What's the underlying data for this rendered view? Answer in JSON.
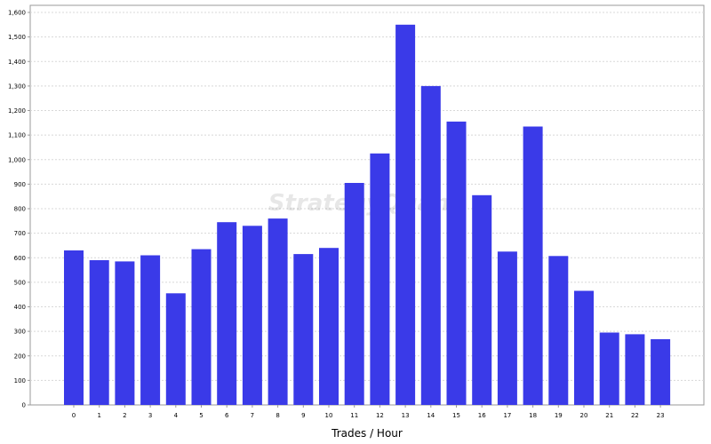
{
  "chart_data": {
    "type": "bar",
    "title": "",
    "xlabel": "Trades / Hour",
    "ylabel": "",
    "watermark": "StrategyQuant",
    "categories": [
      "0",
      "1",
      "2",
      "3",
      "4",
      "5",
      "6",
      "7",
      "8",
      "9",
      "10",
      "11",
      "12",
      "13",
      "14",
      "15",
      "16",
      "17",
      "18",
      "19",
      "20",
      "21",
      "22",
      "23"
    ],
    "values": [
      630,
      590,
      585,
      610,
      455,
      635,
      745,
      730,
      760,
      615,
      640,
      905,
      1025,
      1550,
      1300,
      1155,
      855,
      625,
      1135,
      607,
      465,
      295,
      288,
      268
    ],
    "yticks": [
      0,
      100,
      200,
      300,
      400,
      500,
      600,
      700,
      800,
      900,
      1000,
      1100,
      1200,
      1300,
      1400,
      1500,
      1600
    ],
    "ytick_labels": [
      "0",
      "100",
      "200",
      "300",
      "400",
      "500",
      "600",
      "700",
      "800",
      "900",
      "1,000",
      "1,100",
      "1,200",
      "1,300",
      "1,400",
      "1,500",
      "1,600"
    ],
    "ylim": [
      0,
      1600
    ],
    "grid": true,
    "colors": {
      "bar": "#3a3ae8",
      "grid": "#d8d8d8",
      "axis": "#999999",
      "background": "#ffffff"
    }
  }
}
